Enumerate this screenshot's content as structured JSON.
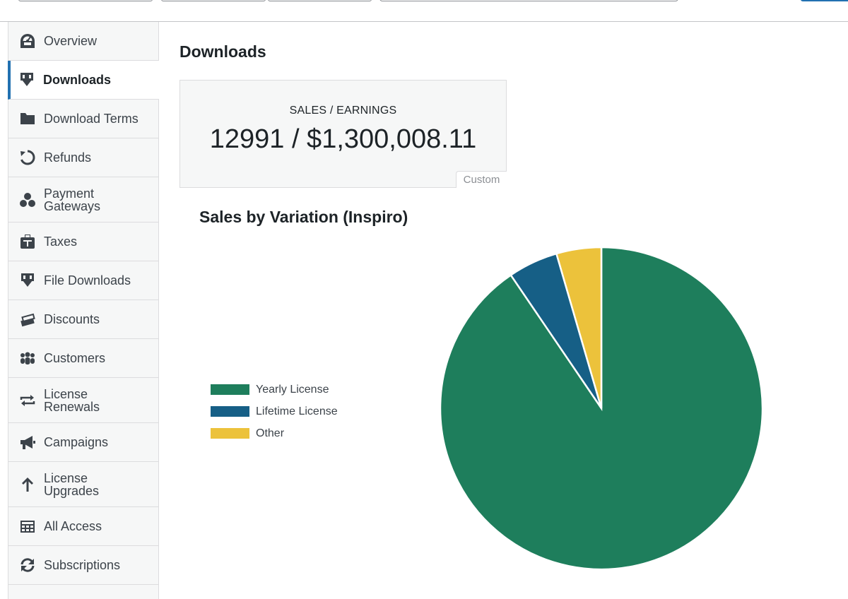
{
  "sidebar": {
    "items": [
      {
        "label": "Overview",
        "icon": "dashboard-gauge-icon"
      },
      {
        "label": "Downloads",
        "icon": "download-icon",
        "active": true
      },
      {
        "label": "Download Terms",
        "icon": "folder-icon"
      },
      {
        "label": "Refunds",
        "icon": "undo-icon"
      },
      {
        "label": "Payment\nGateways",
        "icon": "gateways-icon"
      },
      {
        "label": "Taxes",
        "icon": "tax-icon"
      },
      {
        "label": "File Downloads",
        "icon": "download-icon"
      },
      {
        "label": "Discounts",
        "icon": "tickets-icon"
      },
      {
        "label": "Customers",
        "icon": "groups-icon"
      },
      {
        "label": "License\nRenewals",
        "icon": "repeat-icon"
      },
      {
        "label": "Campaigns",
        "icon": "megaphone-icon"
      },
      {
        "label": "License\nUpgrades",
        "icon": "arrow-up-icon"
      },
      {
        "label": "All Access",
        "icon": "table-grid-icon"
      },
      {
        "label": "Subscriptions",
        "icon": "update-icon"
      },
      {
        "label": "",
        "icon": ""
      }
    ]
  },
  "main": {
    "title": "Downloads",
    "stat": {
      "label": "SALES / EARNINGS",
      "value": "12991 / $1,300,008.11",
      "tag": "Custom"
    }
  },
  "chart_data": {
    "type": "pie",
    "title": "Sales by Variation (Inspiro)",
    "categories": [
      "Yearly License",
      "Lifetime License",
      "Other"
    ],
    "values": [
      90.5,
      5.0,
      4.5
    ],
    "colors": [
      "#1e7e5c",
      "#165f86",
      "#ecc23b"
    ],
    "legend": "left"
  }
}
